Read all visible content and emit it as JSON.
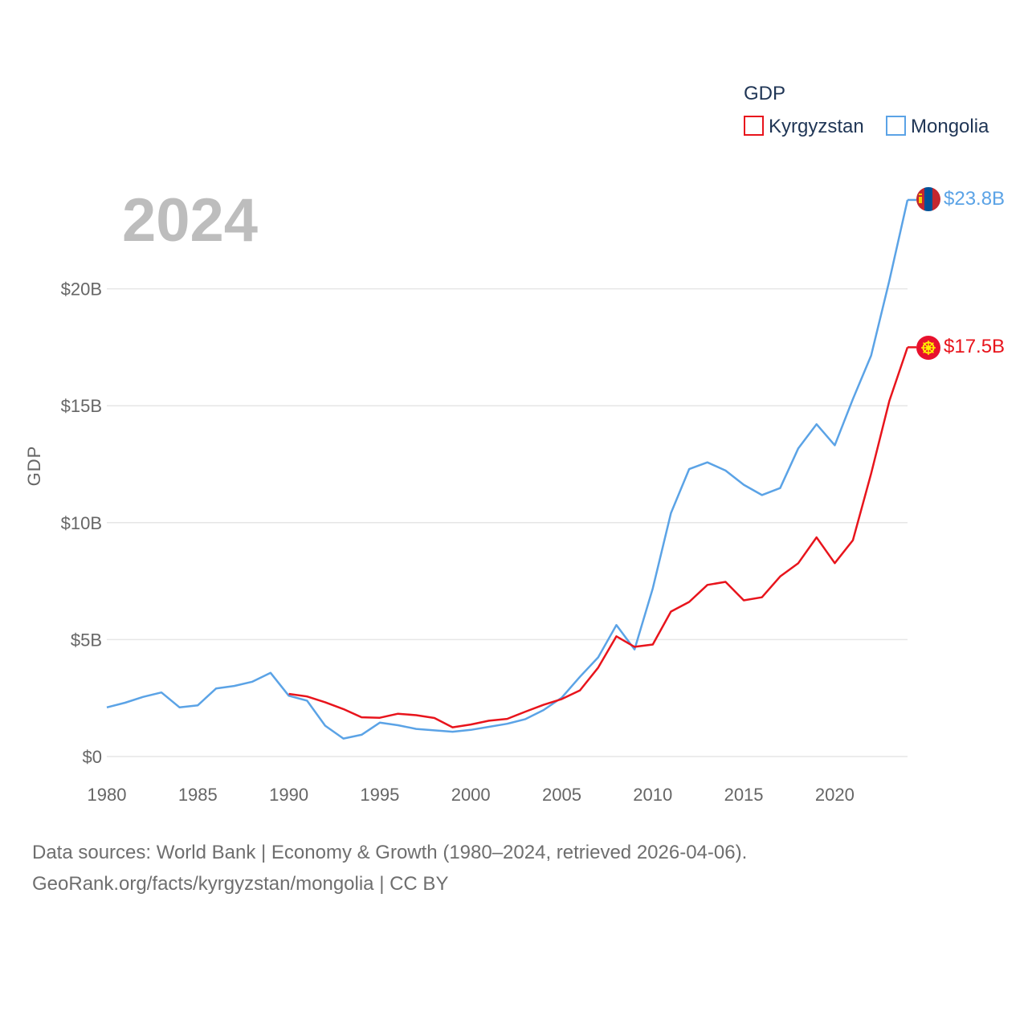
{
  "chart_data": {
    "type": "line",
    "year_label": "2024",
    "ylabel": "GDP",
    "xlabel": "",
    "xlim": [
      1980,
      2024
    ],
    "ylim": [
      0,
      25
    ],
    "y_ticks": [
      0,
      5,
      10,
      15,
      20
    ],
    "y_tick_labels": [
      "$0",
      "$5B",
      "$10B",
      "$15B",
      "$20B"
    ],
    "x_ticks": [
      1980,
      1985,
      1990,
      1995,
      2000,
      2005,
      2010,
      2015,
      2020
    ],
    "x_tick_labels": [
      "1980",
      "1985",
      "1990",
      "1995",
      "2000",
      "2005",
      "2010",
      "2015",
      "2020"
    ],
    "legend": {
      "title": "GDP",
      "position": "top-right"
    },
    "grid": true,
    "series": [
      {
        "name": "Kyrgyzstan",
        "color": "#e8141c",
        "end_label": "$17.5B",
        "flag_icon": "kyrgyzstan-flag-icon",
        "x": [
          1990,
          1991,
          1992,
          1993,
          1994,
          1995,
          1996,
          1997,
          1998,
          1999,
          2000,
          2001,
          2002,
          2003,
          2004,
          2005,
          2006,
          2007,
          2008,
          2009,
          2010,
          2011,
          2012,
          2013,
          2014,
          2015,
          2016,
          2017,
          2018,
          2019,
          2020,
          2021,
          2022,
          2023,
          2024
        ],
        "values": [
          2.68,
          2.57,
          2.32,
          2.03,
          1.68,
          1.66,
          1.83,
          1.77,
          1.65,
          1.25,
          1.37,
          1.53,
          1.61,
          1.92,
          2.21,
          2.46,
          2.83,
          3.8,
          5.14,
          4.69,
          4.79,
          6.2,
          6.61,
          7.34,
          7.47,
          6.68,
          6.81,
          7.7,
          8.27,
          9.37,
          8.27,
          9.25,
          12.1,
          15.2,
          17.5
        ]
      },
      {
        "name": "Mongolia",
        "color": "#5ba3e6",
        "end_label": "$23.8B",
        "flag_icon": "mongolia-flag-icon",
        "x": [
          1980,
          1981,
          1982,
          1983,
          1984,
          1985,
          1986,
          1987,
          1988,
          1989,
          1990,
          1991,
          1992,
          1993,
          1994,
          1995,
          1996,
          1997,
          1998,
          1999,
          2000,
          2001,
          2002,
          2003,
          2004,
          2005,
          2006,
          2007,
          2008,
          2009,
          2010,
          2011,
          2012,
          2013,
          2014,
          2015,
          2016,
          2017,
          2018,
          2019,
          2020,
          2021,
          2022,
          2023,
          2024
        ],
        "values": [
          2.1,
          2.3,
          2.55,
          2.74,
          2.1,
          2.19,
          2.91,
          3.02,
          3.2,
          3.58,
          2.6,
          2.39,
          1.32,
          0.77,
          0.93,
          1.45,
          1.34,
          1.18,
          1.12,
          1.06,
          1.14,
          1.27,
          1.4,
          1.6,
          1.99,
          2.52,
          3.41,
          4.24,
          5.62,
          4.58,
          7.19,
          10.41,
          12.29,
          12.58,
          12.23,
          11.62,
          11.18,
          11.48,
          13.18,
          14.21,
          13.31,
          15.29,
          17.15,
          20.34,
          23.8
        ]
      }
    ]
  },
  "source": {
    "line1": "Data sources: World Bank | Economy & Growth (1980–2024, retrieved 2026-04-06).",
    "line2": "GeoRank.org/facts/kyrgyzstan/mongolia | CC BY"
  }
}
